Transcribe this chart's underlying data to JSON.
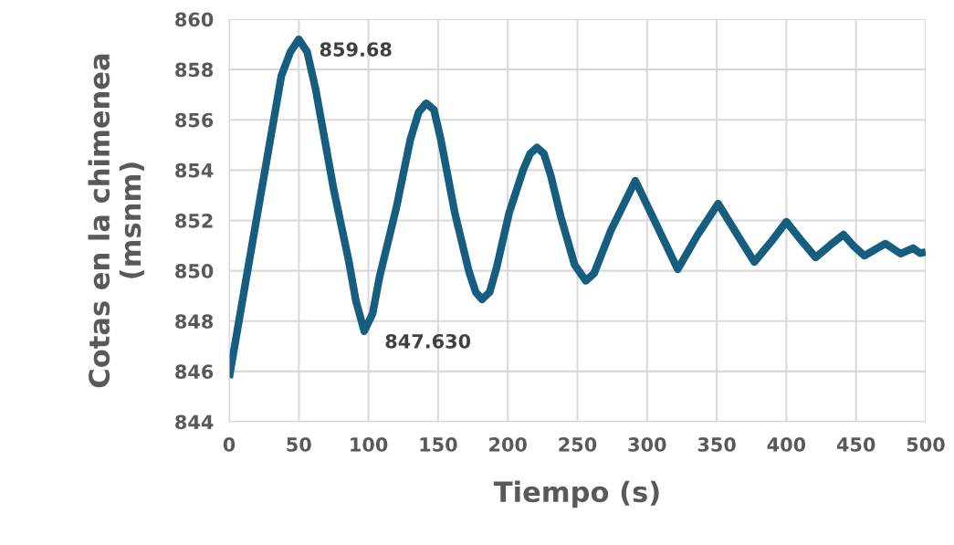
{
  "chart_data": {
    "type": "line",
    "xlabel": "Tiempo (s)",
    "ylabel": "Cotas en la chimenea\n(msnm)",
    "xlim": [
      0,
      500
    ],
    "xticks": [
      0,
      50,
      100,
      150,
      200,
      250,
      300,
      350,
      400,
      450,
      500
    ],
    "ylim": [
      844,
      860
    ],
    "yticks": [
      844,
      846,
      848,
      850,
      852,
      854,
      856,
      858,
      860
    ],
    "grid": true,
    "marker": "none",
    "line_style": "solid",
    "series": [
      {
        "color": "#155e80",
        "x": [
          0,
          12.5,
          25,
          37.5,
          44,
          50,
          56,
          62,
          75,
          86,
          91,
          97,
          103,
          108,
          120,
          130,
          136,
          141.5,
          147,
          152,
          162,
          172,
          177,
          181.5,
          187,
          192,
          201,
          211,
          216,
          221,
          226,
          231,
          238,
          248,
          256,
          262,
          274,
          291.6,
          307,
          322,
          336,
          351,
          364,
          377,
          389,
          400,
          410,
          421,
          431,
          441,
          448,
          456,
          471,
          482,
          491,
          496,
          500
        ],
        "values": [
          845.74,
          849.77,
          853.76,
          857.75,
          858.7,
          859.2,
          858.7,
          857.24,
          853.25,
          850.35,
          848.8,
          847.6,
          848.3,
          849.77,
          852.5,
          855.2,
          856.3,
          856.66,
          856.4,
          855.2,
          852.3,
          850.0,
          849.15,
          848.86,
          849.15,
          850.13,
          852.3,
          854.0,
          854.65,
          854.9,
          854.65,
          853.76,
          852.16,
          850.24,
          849.6,
          849.9,
          851.6,
          853.58,
          851.8,
          850.06,
          851.4,
          852.67,
          851.5,
          850.35,
          851.15,
          851.95,
          851.25,
          850.53,
          851.0,
          851.44,
          851.0,
          850.6,
          851.08,
          850.68,
          850.9,
          850.7,
          850.75
        ]
      }
    ],
    "annotations": [
      {
        "text": "859.68",
        "x": 50,
        "y": 859.2
      },
      {
        "text": "847.630",
        "x": 97,
        "y": 847.6
      }
    ]
  }
}
